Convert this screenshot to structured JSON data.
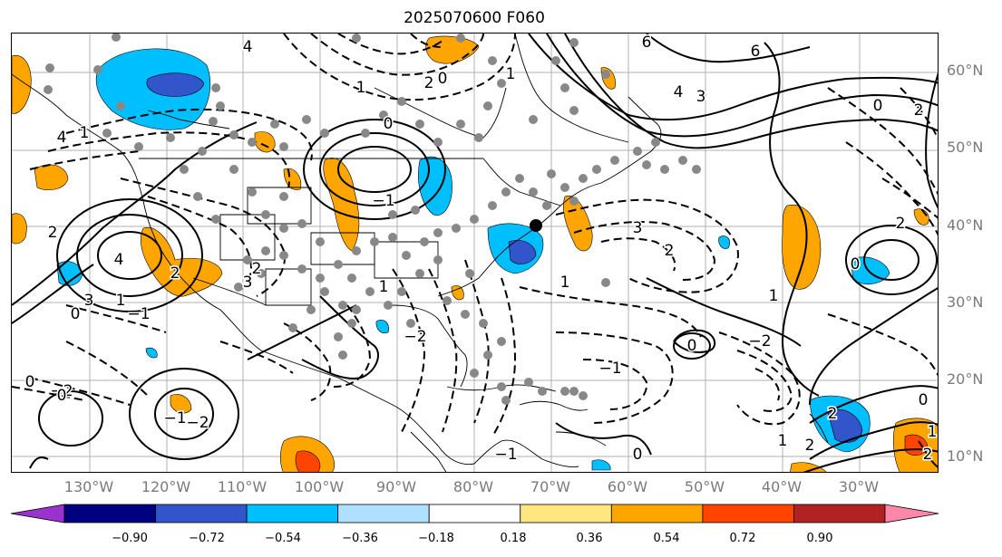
{
  "title": "2025070600 F060",
  "lat_labels": [
    "60°N",
    "50°N",
    "40°N",
    "30°N",
    "20°N",
    "10°N"
  ],
  "lon_labels": [
    "130°W",
    "120°W",
    "110°W",
    "100°W",
    "90°W",
    "80°W",
    "70°W",
    "60°W",
    "50°W",
    "40°W",
    "30°W"
  ],
  "colorbar": {
    "ticks": [
      "−0.90",
      "−0.72",
      "−0.54",
      "−0.36",
      "−0.18",
      "0.18",
      "0.36",
      "0.54",
      "0.72",
      "0.90"
    ],
    "colors": [
      "#9933cc",
      "#000080",
      "#3355cc",
      "#00bfff",
      "#b0e0ff",
      "#ffffff",
      "#ffe680",
      "#ffa500",
      "#ff4400",
      "#b22222",
      "#ff88aa"
    ]
  },
  "contour_labels": [
    "4",
    "3",
    "2",
    "1",
    "0",
    "0",
    "−1",
    "−2",
    "4",
    "2",
    "6",
    "6",
    "4",
    "3",
    "2",
    "1",
    "0",
    "0",
    "2",
    "3",
    "2",
    "1",
    "1",
    "0",
    "2",
    "−2",
    "−1",
    "0",
    "−1",
    "−2",
    "2",
    "3",
    "1",
    "−1",
    "−2",
    "−1",
    "4",
    "2",
    "1",
    "0",
    "1",
    "2",
    "0",
    "1",
    "2",
    "0",
    "1",
    "0"
  ]
}
